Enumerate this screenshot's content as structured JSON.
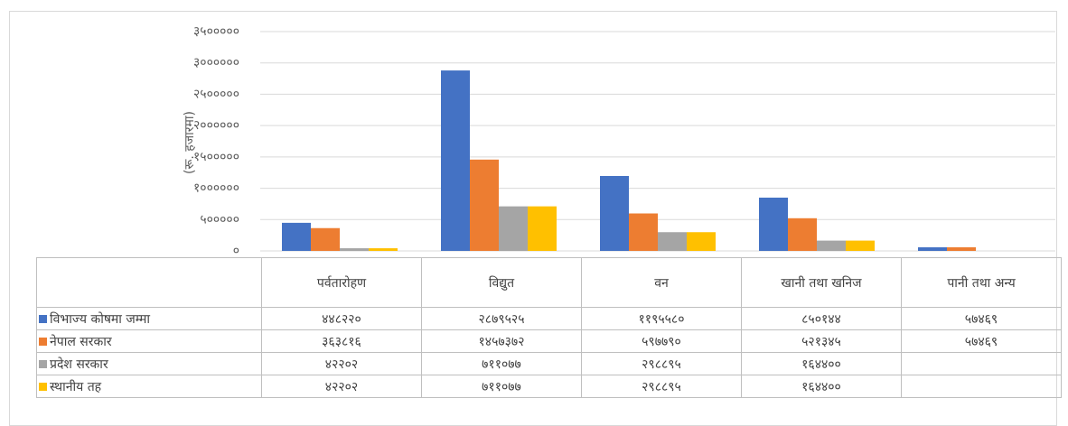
{
  "chart_data": {
    "type": "bar",
    "y_axis_label": "(रू. हजारमा)",
    "categories": [
      "पर्वतारोहण",
      "विद्युत",
      "वन",
      "खानी तथा खनिज",
      "पानी तथा अन्य"
    ],
    "series": [
      {
        "name": "विभाज्य कोषमा जम्मा",
        "color": "#4472c4",
        "values": [
          448220,
          2879525,
          1195580,
          850144,
          57469
        ],
        "value_labels": [
          "४४८२२०",
          "२८७९५२५",
          "११९५५८०",
          "८५०१४४",
          "५७४६९"
        ]
      },
      {
        "name": "नेपाल सरकार",
        "color": "#ed7d31",
        "values": [
          363816,
          1457372,
          597790,
          521345,
          57469
        ],
        "value_labels": [
          "३६३८१६",
          "१४५७३७२",
          "५९७७९०",
          "५२१३४५",
          "५७४६९"
        ]
      },
      {
        "name": "प्रदेश सरकार",
        "color": "#a5a5a5",
        "values": [
          42202,
          711077,
          298895,
          164400,
          null
        ],
        "value_labels": [
          "४२२०२",
          "७११०७७",
          "२९८८९५",
          "१६४४००",
          null
        ]
      },
      {
        "name": "स्थानीय तह",
        "color": "#ffc000",
        "values": [
          42202,
          711077,
          298895,
          164400,
          null
        ],
        "value_labels": [
          "४२२०२",
          "७११०७७",
          "२९८८९५",
          "१६४४००",
          null
        ]
      }
    ],
    "ylim": [
      0,
      3500000
    ],
    "yticks": [
      {
        "value": 0,
        "label": "०"
      },
      {
        "value": 500000,
        "label": "५०००००"
      },
      {
        "value": 1000000,
        "label": "१००००००"
      },
      {
        "value": 1500000,
        "label": "१५०००००"
      },
      {
        "value": 2000000,
        "label": "२००००००"
      },
      {
        "value": 2500000,
        "label": "२५०००००"
      },
      {
        "value": 3000000,
        "label": "३००००००"
      },
      {
        "value": 3500000,
        "label": "३५०००००"
      }
    ],
    "grid": true,
    "legend": "table"
  }
}
